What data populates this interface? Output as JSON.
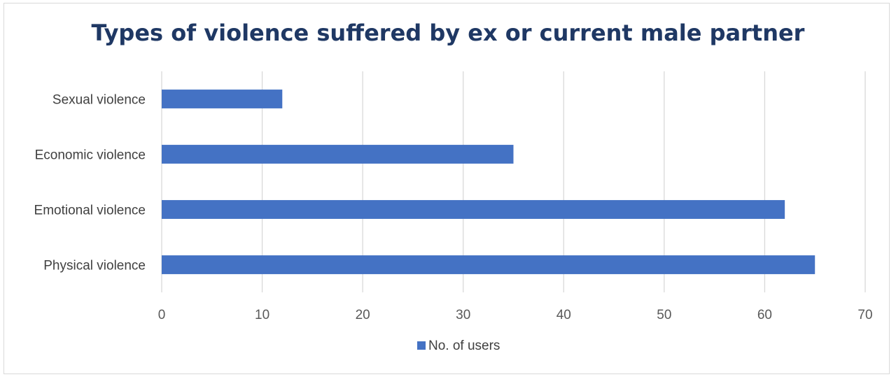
{
  "chart_data": {
    "type": "bar",
    "orientation": "horizontal",
    "title": "Types of violence suffered by ex or current male partner",
    "categories": [
      "Physical violence",
      "Emotional violence",
      "Economic violence",
      "Sexual violence"
    ],
    "series": [
      {
        "name": "No. of users",
        "values": [
          65,
          62,
          35,
          12
        ],
        "color": "#4472c4"
      }
    ],
    "xlim": [
      0,
      70
    ],
    "xticks": [
      "0",
      "10",
      "20",
      "30",
      "40",
      "50",
      "60",
      "70"
    ],
    "grid": true,
    "legend": "bottom",
    "title_color": "#1f3864"
  }
}
